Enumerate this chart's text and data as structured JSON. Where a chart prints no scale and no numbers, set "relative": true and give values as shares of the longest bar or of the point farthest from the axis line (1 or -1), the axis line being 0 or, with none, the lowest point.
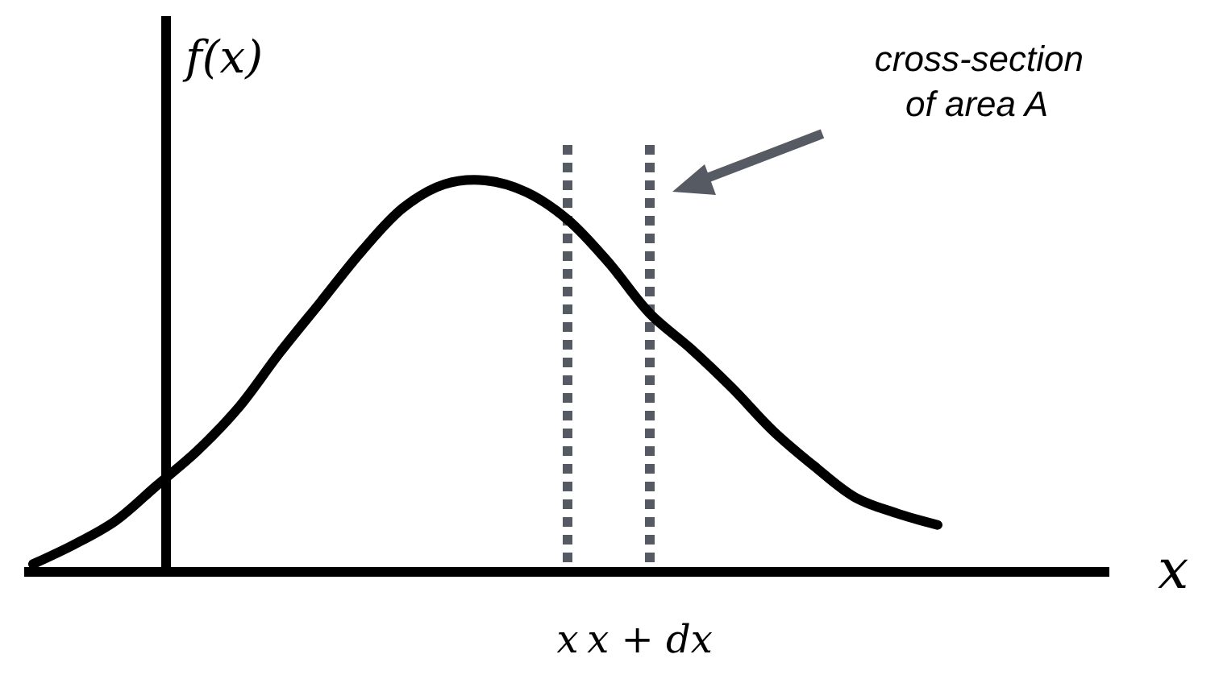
{
  "chart_data": {
    "type": "line",
    "relative": true,
    "ylabel": "f(x)",
    "xlabel": "x",
    "categories": [
      null,
      null,
      null,
      null,
      null,
      null,
      null,
      null,
      null,
      null,
      null,
      null,
      null,
      "x",
      null,
      "x + dx",
      null,
      null,
      null,
      null,
      null,
      null,
      null
    ],
    "series": [
      {
        "color": "#000000",
        "values": [
          0.02,
          0.07,
          0.13,
          0.22,
          0.31,
          0.42,
          0.56,
          0.69,
          0.82,
          0.93,
          0.99,
          1.0,
          0.97,
          0.9,
          0.79,
          0.66,
          0.57,
          0.47,
          0.36,
          0.27,
          0.19,
          0.15,
          0.12
        ]
      }
    ],
    "ref_lines": [
      {
        "axis": "x",
        "value": "x",
        "color": "#555a63",
        "line_style": "dotted"
      },
      {
        "axis": "x",
        "value": "x + dx",
        "color": "#555a63",
        "line_style": "dotted"
      }
    ],
    "annotations": [
      "cross-section\nof area A"
    ]
  }
}
